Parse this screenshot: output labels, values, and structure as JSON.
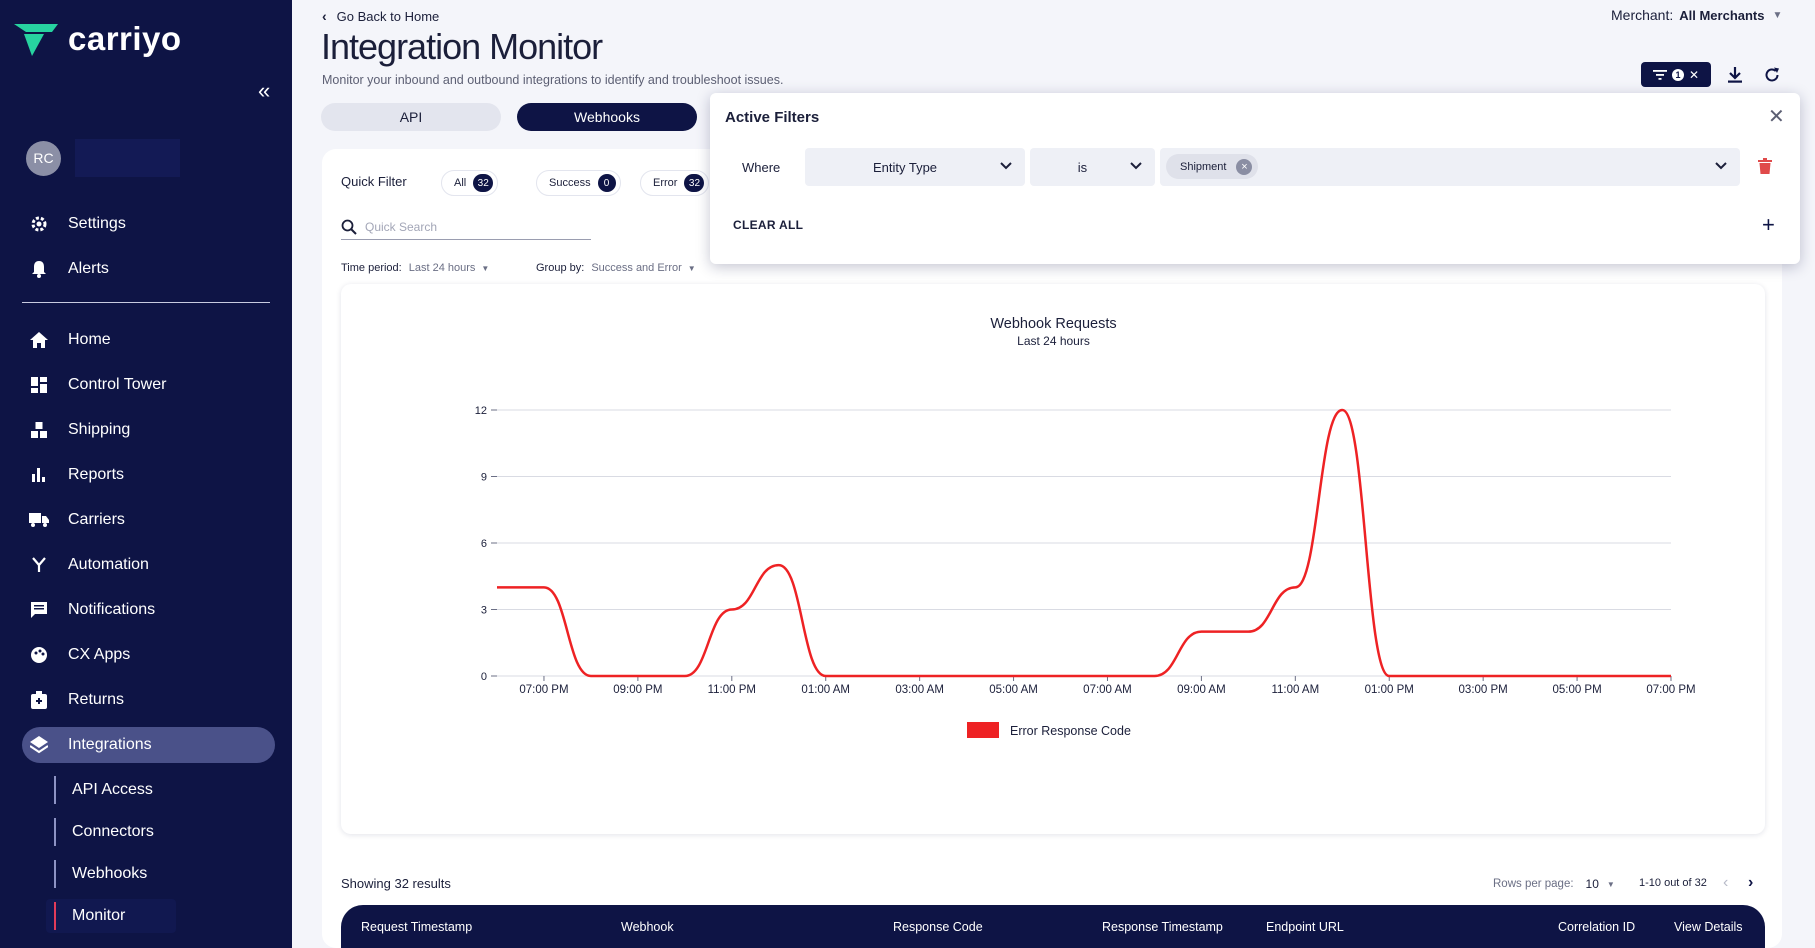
{
  "sidebar": {
    "logo_text": "carriyo",
    "user_initials": "RC",
    "nav": [
      {
        "label": "Settings",
        "icon": "gear-icon"
      },
      {
        "label": "Alerts",
        "icon": "bell-icon"
      },
      {
        "label": "Home",
        "icon": "home-icon"
      },
      {
        "label": "Control Tower",
        "icon": "dashboard-icon"
      },
      {
        "label": "Shipping",
        "icon": "boxes-icon"
      },
      {
        "label": "Reports",
        "icon": "bar-chart-icon"
      },
      {
        "label": "Carriers",
        "icon": "truck-icon"
      },
      {
        "label": "Automation",
        "icon": "fork-icon"
      },
      {
        "label": "Notifications",
        "icon": "message-icon"
      },
      {
        "label": "CX Apps",
        "icon": "palette-icon"
      },
      {
        "label": "Returns",
        "icon": "return-box-icon"
      },
      {
        "label": "Integrations",
        "icon": "layers-icon"
      }
    ],
    "sub_nav": [
      {
        "label": "API Access"
      },
      {
        "label": "Connectors"
      },
      {
        "label": "Webhooks"
      },
      {
        "label": "Monitor"
      }
    ]
  },
  "header": {
    "back_label": "Go Back to Home",
    "title": "Integration Monitor",
    "subtitle": "Monitor your inbound and outbound integrations to identify and troubleshoot issues.",
    "merchant_label": "Merchant:",
    "merchant_value": "All Merchants",
    "filter_count": "1"
  },
  "tabs": [
    {
      "label": "API"
    },
    {
      "label": "Webhooks"
    }
  ],
  "quick_filter": {
    "label": "Quick Filter",
    "chips": [
      {
        "label": "All",
        "count": "32"
      },
      {
        "label": "Success",
        "count": "0"
      },
      {
        "label": "Error",
        "count": "32"
      }
    ],
    "search_placeholder": "Quick Search",
    "time_period_label": "Time period:",
    "time_period_value": "Last 24 hours",
    "group_by_label": "Group by:",
    "group_by_value": "Success and Error"
  },
  "chart_data": {
    "type": "line",
    "title": "Webhook Requests",
    "subtitle": "Last 24 hours",
    "x": [
      "06:00 PM",
      "07:00 PM",
      "08:00 PM",
      "09:00 PM",
      "10:00 PM",
      "11:00 PM",
      "12:00 AM",
      "01:00 AM",
      "02:00 AM",
      "03:00 AM",
      "04:00 AM",
      "05:00 AM",
      "06:00 AM",
      "07:00 AM",
      "08:00 AM",
      "09:00 AM",
      "10:00 AM",
      "11:00 AM",
      "12:00 PM",
      "01:00 PM",
      "02:00 PM",
      "03:00 PM",
      "04:00 PM",
      "05:00 PM",
      "06:00 PM",
      "07:00 PM"
    ],
    "x_tick_labels": [
      "07:00 PM",
      "09:00 PM",
      "11:00 PM",
      "01:00 AM",
      "03:00 AM",
      "05:00 AM",
      "07:00 AM",
      "09:00 AM",
      "11:00 AM",
      "01:00 PM",
      "03:00 PM",
      "05:00 PM",
      "07:00 PM"
    ],
    "y_ticks": [
      0,
      3,
      6,
      9,
      12
    ],
    "ylim": [
      0,
      12
    ],
    "grid": true,
    "legend_position": "bottom",
    "series": [
      {
        "name": "Error Response Code",
        "color": "#ee2224",
        "values": [
          4,
          4,
          0,
          0,
          0,
          3,
          5,
          0,
          0,
          0,
          0,
          0,
          0,
          0,
          0,
          2,
          2,
          4,
          12,
          0,
          0,
          0,
          0,
          0,
          0,
          0
        ]
      }
    ]
  },
  "results": {
    "showing": "Showing 32 results",
    "rows_per_page_label": "Rows per page:",
    "rows_per_page_value": "10",
    "range": "1-10 out of 32"
  },
  "table": {
    "columns": [
      "Request Timestamp",
      "Webhook",
      "Response Code",
      "Response Timestamp",
      "Endpoint URL",
      "Correlation ID",
      "View Details"
    ]
  },
  "active_filters": {
    "title": "Active Filters",
    "where_label": "Where",
    "field_value": "Entity Type",
    "operator_value": "is",
    "tag_value": "Shipment",
    "clear_all_label": "CLEAR ALL"
  },
  "colors": {
    "sidebar_bg": "#0e1445",
    "accent": "#0e1445",
    "error_series": "#ee2224",
    "delete": "#e04a4a"
  }
}
